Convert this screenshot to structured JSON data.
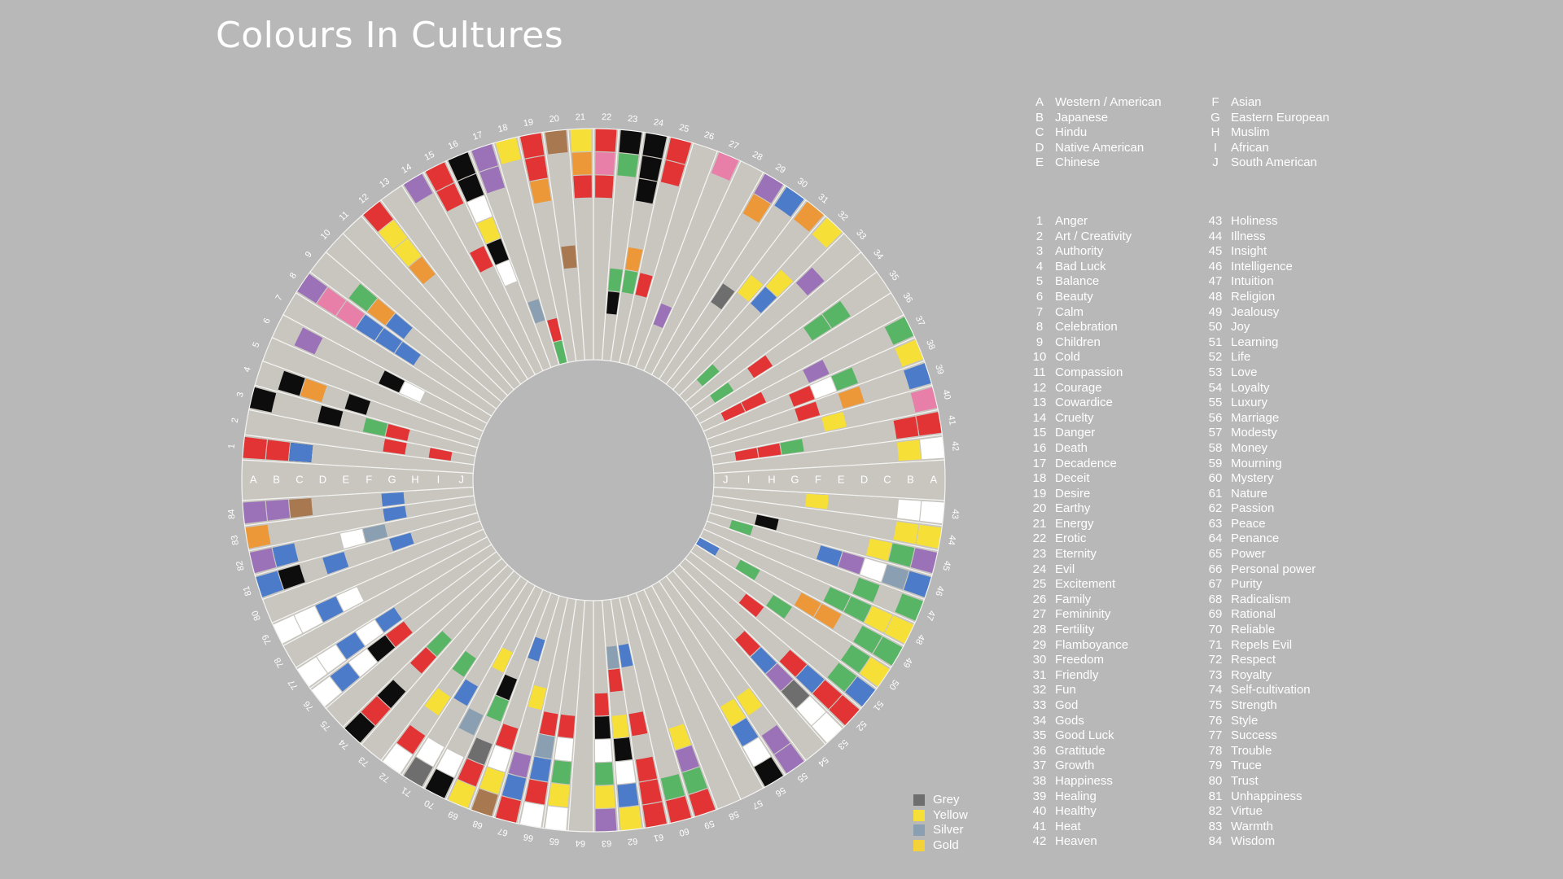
{
  "title": "Colours In Cultures",
  "colors": {
    "background": "#b8b8b8",
    "ring": "#c9c6c0",
    "divider": "#f4f4f2",
    "red": "#e23434",
    "yellow": "#f6e037",
    "gold": "#f4d23a",
    "black": "#0d0d0d",
    "white": "#ffffff",
    "blue": "#4c7cc9",
    "green": "#59b566",
    "purple": "#9b72b8",
    "pink": "#e77fa8",
    "orange": "#ec9838",
    "brown": "#a87850",
    "grey": "#6e6e6e",
    "silver": "#8aa0b2"
  },
  "culture_codes": [
    "A",
    "B",
    "C",
    "D",
    "E",
    "F",
    "G",
    "H",
    "I",
    "J"
  ],
  "cultures": [
    {
      "code": "A",
      "name": "Western / American"
    },
    {
      "code": "B",
      "name": "Japanese"
    },
    {
      "code": "C",
      "name": "Hindu"
    },
    {
      "code": "D",
      "name": "Native American"
    },
    {
      "code": "E",
      "name": "Chinese"
    },
    {
      "code": "F",
      "name": "Asian"
    },
    {
      "code": "G",
      "name": "Eastern European"
    },
    {
      "code": "H",
      "name": "Muslim"
    },
    {
      "code": "I",
      "name": "African"
    },
    {
      "code": "J",
      "name": "South American"
    }
  ],
  "swatch_legend": [
    {
      "label": "Grey",
      "color": "#6e6e6e"
    },
    {
      "label": "Yellow",
      "color": "#f6e037"
    },
    {
      "label": "Silver",
      "color": "#8aa0b2"
    },
    {
      "label": "Gold",
      "color": "#f4d23a"
    }
  ],
  "chart_data": {
    "type": "radial-grid",
    "title": "Colours In Cultures",
    "rings": [
      "A",
      "B",
      "C",
      "D",
      "E",
      "F",
      "G",
      "H",
      "I",
      "J"
    ],
    "meanings": [
      "Anger",
      "Art / Creativity",
      "Authority",
      "Bad Luck",
      "Balance",
      "Beauty",
      "Calm",
      "Celebration",
      "Children",
      "Cold",
      "Compassion",
      "Courage",
      "Cowardice",
      "Cruelty",
      "Danger",
      "Death",
      "Decadence",
      "Deceit",
      "Desire",
      "Earthy",
      "Energy",
      "Erotic",
      "Eternity",
      "Evil",
      "Excitement",
      "Family",
      "Femininity",
      "Fertility",
      "Flamboyance",
      "Freedom",
      "Friendly",
      "Fun",
      "God",
      "Gods",
      "Good Luck",
      "Gratitude",
      "Growth",
      "Happiness",
      "Healing",
      "Healthy",
      "Heat",
      "Heaven",
      "Holiness",
      "Illness",
      "Insight",
      "Intelligence",
      "Intuition",
      "Religion",
      "Jealousy",
      "Joy",
      "Learning",
      "Life",
      "Love",
      "Loyalty",
      "Luxury",
      "Marriage",
      "Modesty",
      "Money",
      "Mourning",
      "Mystery",
      "Nature",
      "Passion",
      "Peace",
      "Penance",
      "Power",
      "Personal power",
      "Purity",
      "Radicalism",
      "Rational",
      "Reliable",
      "Repels Evil",
      "Respect",
      "Royalty",
      "Self-cultivation",
      "Strength",
      "Style",
      "Success",
      "Trouble",
      "Truce",
      "Trust",
      "Unhappiness",
      "Virtue",
      "Warmth",
      "Wisdom"
    ],
    "cells": [
      [
        1,
        "A",
        "red"
      ],
      [
        1,
        "B",
        "red"
      ],
      [
        1,
        "C",
        "black"
      ],
      [
        1,
        "C",
        "blue"
      ],
      [
        2,
        "G",
        "red"
      ],
      [
        2,
        "I",
        "red"
      ],
      [
        3,
        "A",
        "black"
      ],
      [
        3,
        "G",
        "red"
      ],
      [
        3,
        "D",
        "black"
      ],
      [
        3,
        "F",
        "green"
      ],
      [
        4,
        "B",
        "black"
      ],
      [
        4,
        "C",
        "orange"
      ],
      [
        4,
        "E",
        "black"
      ],
      [
        6,
        "B",
        "purple"
      ],
      [
        6,
        "F",
        "black"
      ],
      [
        6,
        "G",
        "white"
      ],
      [
        8,
        "A",
        "purple"
      ],
      [
        8,
        "B",
        "pink"
      ],
      [
        8,
        "C",
        "pink"
      ],
      [
        8,
        "D",
        "blue"
      ],
      [
        8,
        "E",
        "blue"
      ],
      [
        8,
        "F",
        "blue"
      ],
      [
        9,
        "C",
        "green"
      ],
      [
        9,
        "D",
        "orange"
      ],
      [
        9,
        "E",
        "blue"
      ],
      [
        12,
        "A",
        "red"
      ],
      [
        12,
        "B",
        "yellow"
      ],
      [
        12,
        "C",
        "yellow"
      ],
      [
        12,
        "D",
        "orange"
      ],
      [
        14,
        "A",
        "purple"
      ],
      [
        15,
        "A",
        "red"
      ],
      [
        15,
        "B",
        "red"
      ],
      [
        15,
        "E",
        "red"
      ],
      [
        16,
        "A",
        "black"
      ],
      [
        16,
        "B",
        "black"
      ],
      [
        16,
        "C",
        "white"
      ],
      [
        16,
        "D",
        "yellow"
      ],
      [
        16,
        "E",
        "black"
      ],
      [
        16,
        "F",
        "white"
      ],
      [
        17,
        "A",
        "purple"
      ],
      [
        17,
        "B",
        "purple"
      ],
      [
        17,
        "H",
        "silver"
      ],
      [
        18,
        "A",
        "yellow"
      ],
      [
        18,
        "I",
        "red"
      ],
      [
        18,
        "J",
        "green"
      ],
      [
        19,
        "A",
        "red"
      ],
      [
        19,
        "B",
        "red"
      ],
      [
        19,
        "C",
        "orange"
      ],
      [
        20,
        "A",
        "brown"
      ],
      [
        20,
        "F",
        "brown"
      ],
      [
        21,
        "A",
        "yellow"
      ],
      [
        21,
        "B",
        "orange"
      ],
      [
        21,
        "C",
        "red"
      ],
      [
        22,
        "A",
        "red"
      ],
      [
        22,
        "B",
        "pink"
      ],
      [
        22,
        "C",
        "red"
      ],
      [
        23,
        "A",
        "black"
      ],
      [
        23,
        "B",
        "green"
      ],
      [
        23,
        "G",
        "green"
      ],
      [
        23,
        "H",
        "black"
      ],
      [
        24,
        "A",
        "black"
      ],
      [
        24,
        "B",
        "black"
      ],
      [
        24,
        "C",
        "black"
      ],
      [
        24,
        "F",
        "orange"
      ],
      [
        24,
        "G",
        "green"
      ],
      [
        25,
        "A",
        "red"
      ],
      [
        25,
        "B",
        "red"
      ],
      [
        25,
        "G",
        "red"
      ],
      [
        27,
        "A",
        "pink"
      ],
      [
        27,
        "H",
        "purple"
      ],
      [
        29,
        "A",
        "purple"
      ],
      [
        29,
        "B",
        "orange"
      ],
      [
        30,
        "A",
        "blue"
      ],
      [
        30,
        "F",
        "grey"
      ],
      [
        31,
        "A",
        "orange"
      ],
      [
        31,
        "E",
        "yellow"
      ],
      [
        32,
        "A",
        "yellow"
      ],
      [
        32,
        "D",
        "yellow"
      ],
      [
        32,
        "E",
        "blue"
      ],
      [
        33,
        "C",
        "purple"
      ],
      [
        33,
        "I",
        "green"
      ],
      [
        35,
        "C",
        "green"
      ],
      [
        35,
        "D",
        "green"
      ],
      [
        35,
        "G",
        "red"
      ],
      [
        35,
        "I",
        "green"
      ],
      [
        37,
        "A",
        "green"
      ],
      [
        37,
        "E",
        "purple"
      ],
      [
        37,
        "H",
        "red"
      ],
      [
        37,
        "I",
        "red"
      ],
      [
        38,
        "A",
        "yellow"
      ],
      [
        38,
        "D",
        "green"
      ],
      [
        38,
        "E",
        "white"
      ],
      [
        38,
        "F",
        "red"
      ],
      [
        39,
        "A",
        "blue"
      ],
      [
        39,
        "D",
        "orange"
      ],
      [
        39,
        "F",
        "red"
      ],
      [
        40,
        "A",
        "pink"
      ],
      [
        40,
        "E",
        "yellow"
      ],
      [
        41,
        "A",
        "red"
      ],
      [
        41,
        "B",
        "red"
      ],
      [
        41,
        "G",
        "green"
      ],
      [
        41,
        "H",
        "red"
      ],
      [
        41,
        "I",
        "red"
      ],
      [
        42,
        "A",
        "white"
      ],
      [
        42,
        "B",
        "yellow"
      ],
      [
        43,
        "A",
        "white"
      ],
      [
        43,
        "B",
        "white"
      ],
      [
        43,
        "F",
        "yellow"
      ],
      [
        44,
        "A",
        "yellow"
      ],
      [
        44,
        "B",
        "yellow"
      ],
      [
        45,
        "A",
        "purple"
      ],
      [
        45,
        "B",
        "green"
      ],
      [
        45,
        "C",
        "yellow"
      ],
      [
        45,
        "H",
        "black"
      ],
      [
        46,
        "A",
        "blue"
      ],
      [
        46,
        "B",
        "silver"
      ],
      [
        46,
        "C",
        "white"
      ],
      [
        46,
        "D",
        "purple"
      ],
      [
        46,
        "E",
        "blue"
      ],
      [
        46,
        "I",
        "green"
      ],
      [
        47,
        "A",
        "green"
      ],
      [
        47,
        "C",
        "green"
      ],
      [
        48,
        "A",
        "yellow"
      ],
      [
        48,
        "B",
        "yellow"
      ],
      [
        48,
        "C",
        "green"
      ],
      [
        48,
        "D",
        "green"
      ],
      [
        49,
        "A",
        "green"
      ],
      [
        49,
        "B",
        "green"
      ],
      [
        49,
        "D",
        "orange"
      ],
      [
        49,
        "E",
        "orange"
      ],
      [
        49,
        "H",
        "green"
      ],
      [
        49,
        "J",
        "blue"
      ],
      [
        50,
        "A",
        "yellow"
      ],
      [
        50,
        "B",
        "green"
      ],
      [
        50,
        "F",
        "green"
      ],
      [
        51,
        "A",
        "blue"
      ],
      [
        51,
        "B",
        "green"
      ],
      [
        51,
        "G",
        "red"
      ],
      [
        52,
        "A",
        "red"
      ],
      [
        52,
        "B",
        "red"
      ],
      [
        52,
        "C",
        "blue"
      ],
      [
        52,
        "D",
        "red"
      ],
      [
        53,
        "A",
        "white"
      ],
      [
        53,
        "B",
        "white"
      ],
      [
        53,
        "C",
        "grey"
      ],
      [
        53,
        "D",
        "purple"
      ],
      [
        53,
        "E",
        "blue"
      ],
      [
        53,
        "F",
        "red"
      ],
      [
        55,
        "A",
        "purple"
      ],
      [
        55,
        "B",
        "purple"
      ],
      [
        55,
        "D",
        "yellow"
      ],
      [
        56,
        "A",
        "black"
      ],
      [
        56,
        "B",
        "white"
      ],
      [
        56,
        "C",
        "blue"
      ],
      [
        56,
        "D",
        "yellow"
      ],
      [
        59,
        "A",
        "red"
      ],
      [
        59,
        "B",
        "green"
      ],
      [
        59,
        "C",
        "purple"
      ],
      [
        59,
        "D",
        "yellow"
      ],
      [
        60,
        "A",
        "red"
      ],
      [
        60,
        "B",
        "green"
      ],
      [
        61,
        "A",
        "red"
      ],
      [
        61,
        "B",
        "red"
      ],
      [
        61,
        "C",
        "red"
      ],
      [
        61,
        "E",
        "red"
      ],
      [
        61,
        "H",
        "blue"
      ],
      [
        62,
        "A",
        "yellow"
      ],
      [
        62,
        "B",
        "blue"
      ],
      [
        62,
        "C",
        "white"
      ],
      [
        62,
        "D",
        "black"
      ],
      [
        62,
        "E",
        "yellow"
      ],
      [
        62,
        "G",
        "red"
      ],
      [
        62,
        "H",
        "silver"
      ],
      [
        63,
        "A",
        "purple"
      ],
      [
        63,
        "B",
        "yellow"
      ],
      [
        63,
        "C",
        "green"
      ],
      [
        63,
        "D",
        "white"
      ],
      [
        63,
        "E",
        "black"
      ],
      [
        63,
        "F",
        "red"
      ],
      [
        65,
        "A",
        "white"
      ],
      [
        65,
        "B",
        "yellow"
      ],
      [
        65,
        "C",
        "green"
      ],
      [
        65,
        "D",
        "white"
      ],
      [
        65,
        "E",
        "red"
      ],
      [
        66,
        "A",
        "white"
      ],
      [
        66,
        "B",
        "red"
      ],
      [
        66,
        "C",
        "blue"
      ],
      [
        66,
        "D",
        "silver"
      ],
      [
        66,
        "E",
        "red"
      ],
      [
        67,
        "A",
        "red"
      ],
      [
        67,
        "B",
        "blue"
      ],
      [
        67,
        "C",
        "purple"
      ],
      [
        67,
        "F",
        "yellow"
      ],
      [
        68,
        "A",
        "brown"
      ],
      [
        68,
        "B",
        "yellow"
      ],
      [
        68,
        "C",
        "white"
      ],
      [
        68,
        "D",
        "red"
      ],
      [
        68,
        "H",
        "blue"
      ],
      [
        69,
        "A",
        "yellow"
      ],
      [
        69,
        "B",
        "red"
      ],
      [
        69,
        "C",
        "grey"
      ],
      [
        69,
        "E",
        "green"
      ],
      [
        69,
        "F",
        "black"
      ],
      [
        70,
        "A",
        "black"
      ],
      [
        70,
        "B",
        "white"
      ],
      [
        70,
        "D",
        "silver"
      ],
      [
        70,
        "G",
        "yellow"
      ],
      [
        71,
        "A",
        "grey"
      ],
      [
        71,
        "B",
        "white"
      ],
      [
        71,
        "E",
        "blue"
      ],
      [
        72,
        "A",
        "white"
      ],
      [
        72,
        "B",
        "red"
      ],
      [
        72,
        "D",
        "yellow"
      ],
      [
        72,
        "F",
        "green"
      ],
      [
        74,
        "A",
        "black"
      ],
      [
        74,
        "B",
        "red"
      ],
      [
        74,
        "C",
        "black"
      ],
      [
        74,
        "E",
        "red"
      ],
      [
        74,
        "F",
        "green"
      ],
      [
        76,
        "A",
        "white"
      ],
      [
        76,
        "B",
        "blue"
      ],
      [
        76,
        "C",
        "white"
      ],
      [
        76,
        "D",
        "black"
      ],
      [
        76,
        "E",
        "red"
      ],
      [
        77,
        "A",
        "white"
      ],
      [
        77,
        "B",
        "white"
      ],
      [
        77,
        "C",
        "blue"
      ],
      [
        77,
        "D",
        "white"
      ],
      [
        77,
        "E",
        "blue"
      ],
      [
        79,
        "A",
        "white"
      ],
      [
        79,
        "B",
        "white"
      ],
      [
        79,
        "C",
        "blue"
      ],
      [
        79,
        "D",
        "white"
      ],
      [
        81,
        "A",
        "blue"
      ],
      [
        81,
        "B",
        "black"
      ],
      [
        81,
        "D",
        "blue"
      ],
      [
        81,
        "G",
        "blue"
      ],
      [
        82,
        "A",
        "purple"
      ],
      [
        82,
        "B",
        "blue"
      ],
      [
        82,
        "E",
        "white"
      ],
      [
        82,
        "F",
        "silver"
      ],
      [
        83,
        "A",
        "orange"
      ],
      [
        83,
        "G",
        "blue"
      ],
      [
        84,
        "A",
        "purple"
      ],
      [
        84,
        "B",
        "purple"
      ],
      [
        84,
        "C",
        "brown"
      ],
      [
        84,
        "G",
        "blue"
      ]
    ]
  }
}
